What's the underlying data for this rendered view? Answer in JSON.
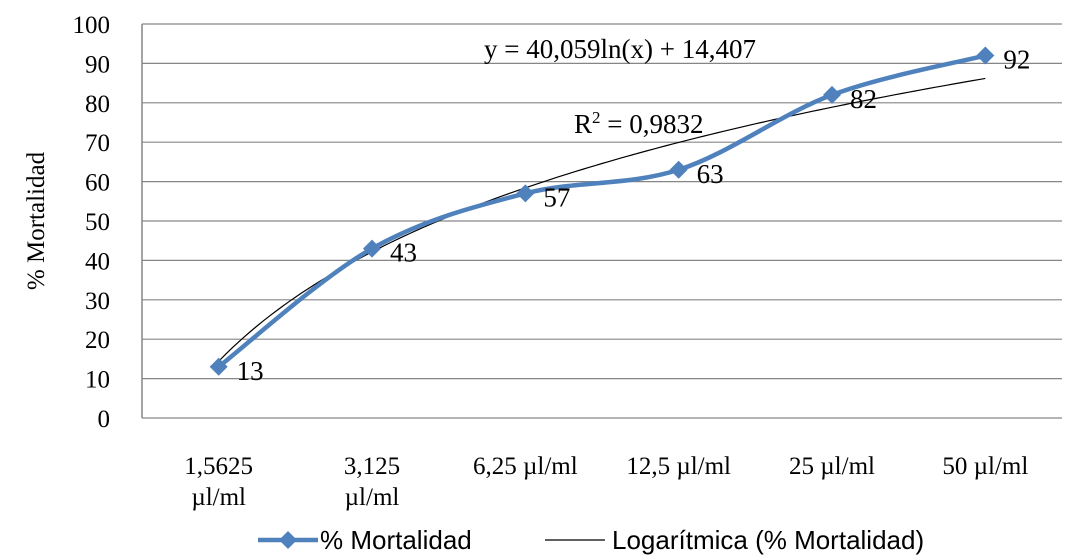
{
  "chart_data": {
    "type": "line",
    "categories": [
      "1,5625 µl/ml",
      "3,125 µl/ml",
      "6,25 µl/ml",
      "12,5 µl/ml",
      "25 µl/ml",
      "50 µl/ml"
    ],
    "category_lines": [
      [
        "1,5625",
        "µl/ml"
      ],
      [
        "3,125",
        "µl/ml"
      ],
      [
        "6,25 µl/ml"
      ],
      [
        "12,5 µl/ml"
      ],
      [
        "25 µl/ml"
      ],
      [
        "50 µl/ml"
      ]
    ],
    "series": [
      {
        "name": "% Mortalidad",
        "values": [
          13,
          43,
          57,
          63,
          82,
          92
        ],
        "color": "#4f81bd",
        "marker": "diamond",
        "smooth": true
      }
    ],
    "trendline": {
      "name": "Logarítmica (% Mortalidad)",
      "type": "logarithmic",
      "a": 40.059,
      "b": 14.407,
      "equation": "y = 40,059ln(x) + 14,407",
      "r2_prefix": "R",
      "r2_suffix": " = 0,9832",
      "color": "#000000"
    },
    "data_labels": [
      "13",
      "43",
      "57",
      "63",
      "82",
      "92"
    ],
    "ylabel": "% Mortalidad",
    "xlabel": "",
    "ylim": [
      0,
      100
    ],
    "yticks": [
      0,
      10,
      20,
      30,
      40,
      50,
      60,
      70,
      80,
      90,
      100
    ],
    "grid": true,
    "legend_position": "bottom"
  }
}
